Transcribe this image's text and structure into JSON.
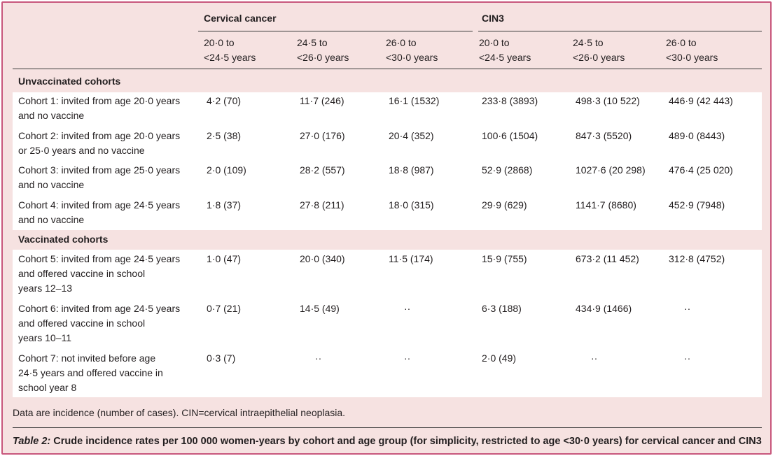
{
  "table": {
    "groups": [
      "Cervical cancer",
      "CIN3"
    ],
    "age_columns": [
      [
        "20·0 to",
        "<24·5 years"
      ],
      [
        "24·5 to",
        "<26·0 years"
      ],
      [
        "26·0 to",
        "<30·0 years"
      ],
      [
        "20·0 to",
        "<24·5 years"
      ],
      [
        "24·5 to",
        "<26·0 years"
      ],
      [
        "26·0 to",
        "<30·0 years"
      ]
    ],
    "sections": [
      {
        "title": "Unvaccinated cohorts",
        "rows": [
          {
            "label": [
              "Cohort 1: invited from age 20·0 years",
              "and no vaccine"
            ],
            "values": [
              "4·2 (70)",
              "11·7 (246)",
              "16·1 (1532)",
              "233·8 (3893)",
              "498·3 (10 522)",
              "446·9 (42 443)"
            ]
          },
          {
            "label": [
              "Cohort 2: invited from age 20·0 years",
              "or 25·0 years and no vaccine"
            ],
            "values": [
              "2·5 (38)",
              "27·0 (176)",
              "20·4 (352)",
              "100·6 (1504)",
              "847·3 (5520)",
              "489·0 (8443)"
            ]
          },
          {
            "label": [
              "Cohort 3: invited from age 25·0 years",
              "and no vaccine"
            ],
            "values": [
              "2·0 (109)",
              "28·2 (557)",
              "18·8 (987)",
              "52·9 (2868)",
              "1027·6 (20 298)",
              "476·4 (25 020)"
            ]
          },
          {
            "label": [
              "Cohort 4: invited from age 24·5 years",
              "and no vaccine"
            ],
            "values": [
              "1·8 (37)",
              "27·8 (211)",
              "18·0 (315)",
              "29·9 (629)",
              "1141·7 (8680)",
              "452·9 (7948)"
            ]
          }
        ]
      },
      {
        "title": "Vaccinated cohorts",
        "rows": [
          {
            "label": [
              "Cohort 5: invited from age 24·5 years",
              "and offered vaccine in school",
              "years 12–13"
            ],
            "values": [
              "1·0 (47)",
              "20·0 (340)",
              "11·5 (174)",
              "15·9 (755)",
              "673·2 (11 452)",
              "312·8 (4752)"
            ]
          },
          {
            "label": [
              "Cohort 6: invited from age 24·5 years",
              "and offered vaccine in school",
              "years 10–11"
            ],
            "values": [
              "0·7 (21)",
              "14·5 (49)",
              "··",
              "6·3 (188)",
              "434·9 (1466)",
              "··"
            ]
          },
          {
            "label": [
              "Cohort 7: not invited before age",
              "24·5 years and offered vaccine in",
              "school year 8"
            ],
            "values": [
              "0·3 (7)",
              "··",
              "··",
              "2·0 (49)",
              "··",
              "··"
            ]
          }
        ]
      }
    ],
    "footnote": "Data are incidence (number of cases). CIN=cervical intraepithelial neoplasia.",
    "caption_label": "Table 2:",
    "caption_text": " Crude incidence rates per 100 000 women-years by cohort and age group (for simplicity, restricted to age <30·0 years) for cervical cancer and CIN3"
  },
  "colors": {
    "background": "#f6e2e1",
    "border": "#c8577c",
    "band": "#ffffff"
  }
}
